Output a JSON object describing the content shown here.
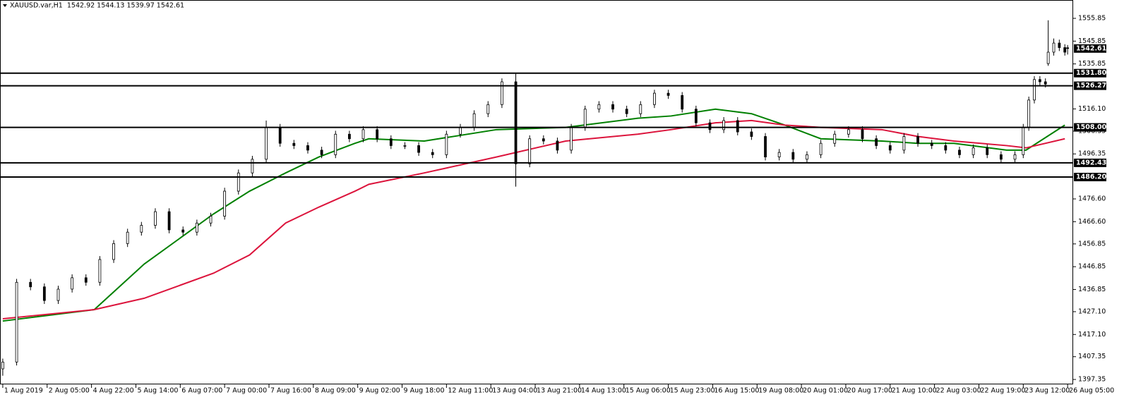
{
  "chart_data": {
    "type": "candlestick",
    "title": "XAUUSD.var,H1  1542.92 1544.13 1539.97 1542.61",
    "candles": {
      "x": [
        0,
        5,
        10,
        15,
        20,
        25,
        30,
        35,
        40,
        45,
        50,
        55,
        60,
        65,
        70,
        75,
        80,
        85,
        90,
        95,
        100,
        105,
        110,
        115,
        120,
        125,
        130,
        135,
        140,
        145,
        150,
        155,
        160,
        165,
        170,
        175,
        180,
        185,
        190,
        195,
        200,
        205,
        210,
        215,
        220,
        225,
        230,
        235,
        240,
        245,
        250,
        255,
        260,
        265,
        270,
        275,
        280,
        285,
        290,
        295,
        300,
        305,
        310,
        315,
        320,
        325,
        330,
        335,
        340,
        345,
        350,
        355,
        360,
        365,
        368,
        370,
        372,
        374,
        376,
        377,
        379,
        381,
        383,
        384
      ],
      "open": [
        1402,
        1405,
        1440,
        1438,
        1432,
        1437,
        1442,
        1440,
        1450,
        1457,
        1462,
        1465,
        1471,
        1463,
        1462,
        1466,
        1469,
        1480,
        1488,
        1494,
        1508,
        1501,
        1500,
        1498,
        1496,
        1505,
        1503,
        1507,
        1503,
        1500,
        1500,
        1497,
        1496,
        1505,
        1508,
        1514,
        1518,
        1528,
        1492,
        1503,
        1502,
        1498,
        1508,
        1516,
        1518,
        1516,
        1514,
        1518,
        1523,
        1522,
        1516,
        1510,
        1507,
        1511,
        1506,
        1504,
        1495,
        1497,
        1494,
        1496,
        1501,
        1505,
        1507,
        1503,
        1500,
        1498,
        1504,
        1501,
        1500,
        1498,
        1496,
        1499,
        1496,
        1494,
        1496,
        1508,
        1520,
        1529,
        1528,
        1536,
        1541,
        1545,
        1543,
        1542.92
      ],
      "high": [
        1406.5,
        1441.5,
        1441.5,
        1439.5,
        1438.5,
        1443.5,
        1443.5,
        1451.5,
        1458.5,
        1463.5,
        1466.5,
        1472.5,
        1472.5,
        1464.5,
        1467.5,
        1470.5,
        1481.5,
        1489.5,
        1495.5,
        1511,
        1509.5,
        1502.5,
        1501.5,
        1499.5,
        1506.5,
        1506.5,
        1508.5,
        1508.5,
        1504.5,
        1501.5,
        1501.5,
        1498.5,
        1506.5,
        1509.5,
        1515.5,
        1519.5,
        1529.5,
        1532,
        1504.5,
        1504.5,
        1503.5,
        1509.5,
        1517.5,
        1519.5,
        1519.5,
        1517.5,
        1519.5,
        1524.5,
        1524.5,
        1523.5,
        1517.5,
        1511.5,
        1512.5,
        1512.5,
        1507.5,
        1505.5,
        1498.5,
        1498.5,
        1497.5,
        1502.5,
        1506.5,
        1508.5,
        1508.5,
        1504.5,
        1501.5,
        1505.5,
        1505.5,
        1502.5,
        1501.5,
        1499.5,
        1500.5,
        1500.5,
        1497.5,
        1497.5,
        1509.5,
        1521.5,
        1530.5,
        1530.5,
        1529.5,
        1555,
        1547,
        1546.5,
        1544.5,
        1544.13
      ],
      "low": [
        1399,
        1403.5,
        1436.5,
        1430.5,
        1430.5,
        1435.5,
        1438.5,
        1438.5,
        1448.5,
        1455.5,
        1460.5,
        1463.5,
        1461.5,
        1460.5,
        1460.5,
        1464.5,
        1467.5,
        1478.5,
        1486.5,
        1492.5,
        1499.5,
        1498.5,
        1496.5,
        1494.5,
        1494.5,
        1501.5,
        1501.5,
        1501.5,
        1498.5,
        1498.5,
        1495.5,
        1494.5,
        1494.5,
        1503.5,
        1506.5,
        1512.5,
        1516.5,
        1482,
        1490.5,
        1500.5,
        1496.5,
        1496.5,
        1506.5,
        1514.5,
        1514.5,
        1512.5,
        1512.5,
        1516.5,
        1520.5,
        1514.5,
        1508.5,
        1505.5,
        1505.5,
        1504.5,
        1502.5,
        1493.5,
        1493.5,
        1492.5,
        1492.5,
        1494.5,
        1499.5,
        1503.5,
        1501.5,
        1498.5,
        1496.5,
        1496.5,
        1499.5,
        1498.5,
        1496.5,
        1494.5,
        1494.5,
        1494.5,
        1492.5,
        1492.5,
        1494.5,
        1506.5,
        1518.5,
        1526.5,
        1525.5,
        1535,
        1539.5,
        1541.5,
        1539.5,
        1539.97
      ],
      "close": [
        1405,
        1440,
        1438,
        1432,
        1437,
        1442,
        1440,
        1450,
        1457,
        1462,
        1465,
        1471,
        1463,
        1462,
        1466,
        1469,
        1480,
        1488,
        1494,
        1508,
        1501,
        1500,
        1498,
        1496,
        1505,
        1503,
        1507,
        1503,
        1500,
        1500,
        1497,
        1496,
        1505,
        1508,
        1514,
        1518,
        1528,
        1492,
        1503,
        1502,
        1498,
        1508,
        1516,
        1518,
        1516,
        1514,
        1518,
        1523,
        1522,
        1516,
        1510,
        1507,
        1511,
        1506,
        1504,
        1495,
        1497,
        1494,
        1496,
        1501,
        1505,
        1507,
        1503,
        1500,
        1498,
        1504,
        1501,
        1500,
        1498,
        1496,
        1499,
        1496,
        1494,
        1496,
        1508,
        1520,
        1529,
        1528,
        1527,
        1541,
        1545,
        1543,
        1541,
        1542.61
      ]
    },
    "ma_x": [
      0,
      33,
      51,
      76,
      89,
      102,
      114,
      127,
      132,
      152,
      178,
      203,
      229,
      241,
      257,
      270,
      282,
      295,
      317,
      330,
      343,
      362,
      369,
      383
    ],
    "lines": [
      {
        "color": "#008000",
        "values": [
          1423,
          1428,
          1448,
          1470,
          1480,
          1488,
          1495,
          1501,
          1503,
          1502,
          1507,
          1508,
          1512,
          1513,
          1516,
          1514,
          1509,
          1503,
          1502,
          1501,
          1501,
          1498,
          1498,
          1509
        ]
      },
      {
        "color": "#dc143c",
        "values": [
          1424,
          1428,
          1433,
          1444,
          1452,
          1466,
          1473,
          1480,
          1483,
          1488,
          1495,
          1502,
          1505,
          1507,
          1510,
          1511,
          1509,
          1508,
          1507,
          1504,
          1502,
          1500,
          1499,
          1503
        ]
      }
    ],
    "levels": [
      1531.8,
      1526.27,
      1508,
      1492.43,
      1486.2
    ],
    "level_labels": [
      "1531.80",
      "1526.27",
      "1508.00",
      "1492.43",
      "1486.20"
    ],
    "last_price": 1542.61,
    "xlim": [
      -1,
      386
    ],
    "ylim": [
      1395.2,
      1563.9
    ],
    "yticks": [
      1555.85,
      1545.85,
      1535.85,
      {
        "value": 1516.1,
        "label": "1516.10"
      },
      1506.35,
      1496.35,
      {
        "value": 1476.6,
        "label": "1476.60"
      },
      {
        "value": 1466.6,
        "label": "1466.60"
      },
      1456.85,
      1446.85,
      1436.85,
      {
        "value": 1427.1,
        "label": "1427.10"
      },
      {
        "value": 1417.1,
        "label": "1417.10"
      },
      1407.35,
      1397.35
    ],
    "xticks": [
      {
        "value": 0,
        "label": "1 Aug 2019"
      },
      {
        "value": 16,
        "label": "2 Aug 05:00"
      },
      {
        "value": 32,
        "label": "4 Aug 22:00"
      },
      {
        "value": 48,
        "label": "5 Aug 14:00"
      },
      {
        "value": 64,
        "label": "6 Aug 07:00"
      },
      {
        "value": 80,
        "label": "7 Aug 00:00"
      },
      {
        "value": 96,
        "label": "7 Aug 16:00"
      },
      {
        "value": 112,
        "label": "8 Aug 09:00"
      },
      {
        "value": 128,
        "label": "9 Aug 02:00"
      },
      {
        "value": 144,
        "label": "9 Aug 18:00"
      },
      {
        "value": 160,
        "label": "12 Aug 11:00"
      },
      {
        "value": 176,
        "label": "13 Aug 04:00"
      },
      {
        "value": 192,
        "label": "13 Aug 21:00"
      },
      {
        "value": 208,
        "label": "14 Aug 13:00"
      },
      {
        "value": 224,
        "label": "15 Aug 06:00"
      },
      {
        "value": 240,
        "label": "15 Aug 23:00"
      },
      {
        "value": 256,
        "label": "16 Aug 15:00"
      },
      {
        "value": 272,
        "label": "19 Aug 08:00"
      },
      {
        "value": 288,
        "label": "20 Aug 01:00"
      },
      {
        "value": 304,
        "label": "20 Aug 17:00"
      },
      {
        "value": 320,
        "label": "21 Aug 10:00"
      },
      {
        "value": 336,
        "label": "22 Aug 03:00"
      },
      {
        "value": 352,
        "label": "22 Aug 19:00"
      },
      {
        "value": 368,
        "label": "23 Aug 12:00"
      },
      {
        "value": 384,
        "label": "26 Aug 05:00"
      }
    ]
  }
}
